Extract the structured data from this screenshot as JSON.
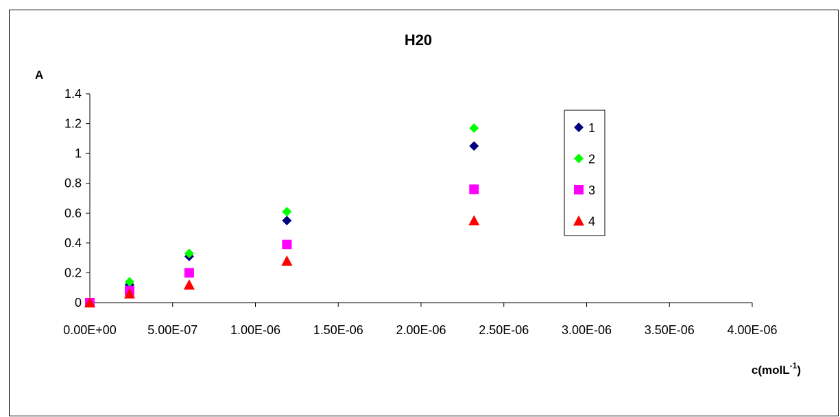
{
  "chart_data": {
    "type": "scatter",
    "title": "H20",
    "ylabel": "A",
    "xlabel": "c(molL",
    "xlabel_sup": "-1",
    "xlabel_suffix": ")",
    "xlim": [
      0,
      4e-06
    ],
    "ylim": [
      0,
      1.4
    ],
    "x_ticks": [
      "0.00E+00",
      "5.00E-07",
      "1.00E-06",
      "1.50E-06",
      "2.00E-06",
      "2.50E-06",
      "3.00E-06",
      "3.50E-06",
      "4.00E-06"
    ],
    "y_ticks": [
      "0",
      "0.2",
      "0.4",
      "0.6",
      "0.8",
      "1",
      "1.2",
      "1.4"
    ],
    "grid": false,
    "legend_position": "right",
    "series": [
      {
        "name": "1",
        "color": "#000080",
        "marker": "diamond",
        "x": [
          0,
          2.4e-07,
          6e-07,
          1.19e-06,
          2.32e-06
        ],
        "y": [
          0,
          0.12,
          0.31,
          0.55,
          1.05
        ]
      },
      {
        "name": "2",
        "color": "#00FF00",
        "marker": "diamond",
        "x": [
          0,
          2.4e-07,
          6e-07,
          1.19e-06,
          2.32e-06
        ],
        "y": [
          0,
          0.14,
          0.33,
          0.61,
          1.17
        ]
      },
      {
        "name": "3",
        "color": "#FF00FF",
        "marker": "square",
        "x": [
          0,
          2.4e-07,
          6e-07,
          1.19e-06,
          2.32e-06
        ],
        "y": [
          0,
          0.08,
          0.2,
          0.39,
          0.76
        ]
      },
      {
        "name": "4",
        "color": "#FF0000",
        "marker": "triangle",
        "x": [
          0,
          2.4e-07,
          6e-07,
          1.19e-06,
          2.32e-06
        ],
        "y": [
          0,
          0.06,
          0.12,
          0.28,
          0.55
        ]
      }
    ]
  }
}
